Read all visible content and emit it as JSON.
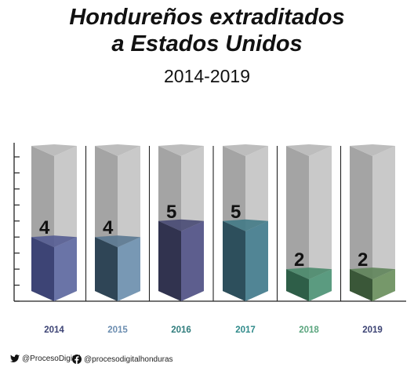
{
  "title_line1": "Hondureños extraditados",
  "title_line2": "a Estados Unidos",
  "subtitle": "2014-2019",
  "chart_data": {
    "type": "bar",
    "categories": [
      "2014",
      "2015",
      "2016",
      "2017",
      "2018",
      "2019"
    ],
    "values": [
      4,
      4,
      5,
      5,
      2,
      2
    ],
    "ylim": [
      0,
      9
    ],
    "colors": [
      {
        "dark": "#3d4475",
        "light": "#6a74a7",
        "top": "#545c92",
        "label": "#3d4475"
      },
      {
        "dark": "#2f4556",
        "light": "#7898b4",
        "top": "#5a7891",
        "label": "#6b8db0"
      },
      {
        "dark": "#31334f",
        "light": "#5d5e8e",
        "top": "#484a74",
        "label": "#2f7c7c"
      },
      {
        "dark": "#2d4f5c",
        "light": "#518595",
        "top": "#437a86",
        "label": "#2f8a8a"
      },
      {
        "dark": "#2e5e48",
        "light": "#5b9b80",
        "top": "#4a8a6c",
        "label": "#5aa57e"
      },
      {
        "dark": "#3a5738",
        "light": "#76986a",
        "top": "#5f845a",
        "label": "#3d4475"
      }
    ]
  },
  "footer": {
    "twitter_handle": "@ProcesoDigital",
    "facebook_handle": "@procesodigitalhonduras"
  }
}
